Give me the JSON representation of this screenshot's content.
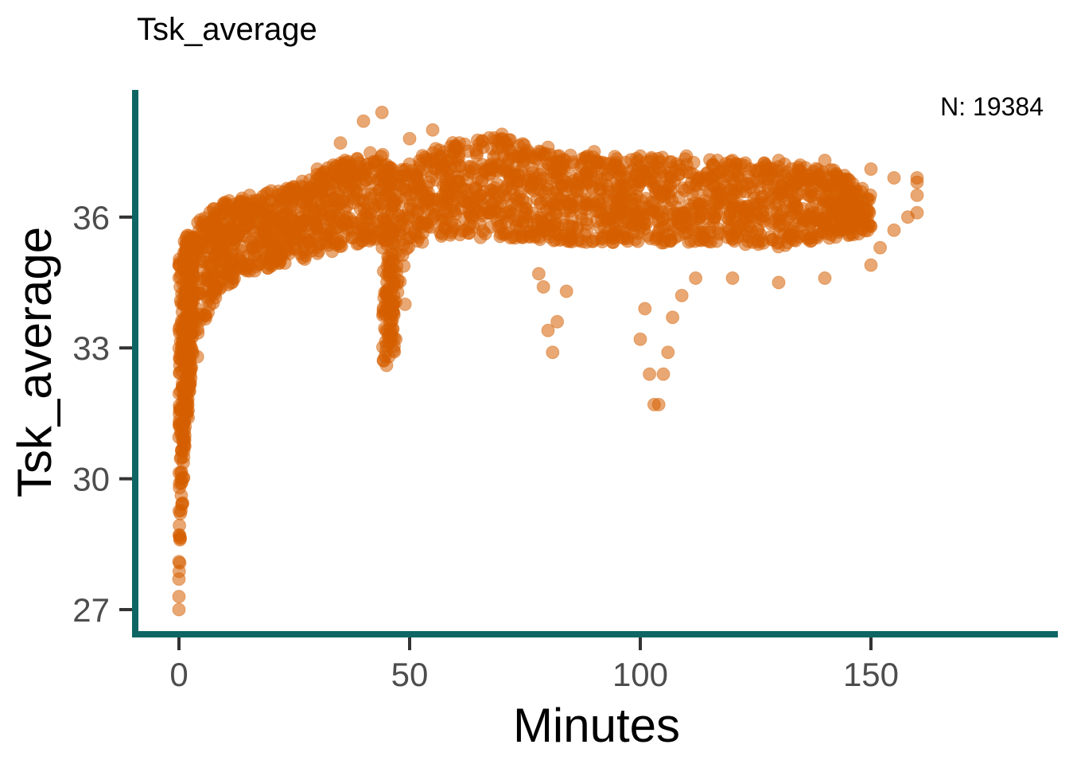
{
  "chart_data": {
    "type": "scatter",
    "title": "Tsk_average",
    "xlabel": "Minutes",
    "ylabel": "Tsk_average",
    "annotation": "N: 19384",
    "xlim": [
      -9.5,
      190
    ],
    "ylim": [
      26.5,
      39
    ],
    "x_ticks": [
      0,
      50,
      100,
      150
    ],
    "y_ticks": [
      27,
      30,
      33,
      36
    ],
    "grid": false,
    "legend": "none",
    "colors": {
      "points": "#d55e00",
      "axis": "#0d6663",
      "tick_label": "#4d4d4d"
    },
    "point_count_shown": 19384,
    "sample_points": [
      {
        "x": 0,
        "y": 27.0
      },
      {
        "x": 0,
        "y": 27.3
      },
      {
        "x": 0,
        "y": 27.7
      },
      {
        "x": 0,
        "y": 28.1
      },
      {
        "x": 0.2,
        "y": 28.6
      },
      {
        "x": 0.3,
        "y": 29.2
      },
      {
        "x": 0.5,
        "y": 30.0
      },
      {
        "x": 1,
        "y": 30.5
      },
      {
        "x": 2,
        "y": 31.4
      },
      {
        "x": 4,
        "y": 32.8
      },
      {
        "x": 0,
        "y": 34.9
      },
      {
        "x": 2,
        "y": 35.3
      },
      {
        "x": 5,
        "y": 35.8
      },
      {
        "x": 10,
        "y": 36.3
      },
      {
        "x": 20,
        "y": 36.6
      },
      {
        "x": 30,
        "y": 37.1
      },
      {
        "x": 35,
        "y": 37.7
      },
      {
        "x": 40,
        "y": 38.2
      },
      {
        "x": 44,
        "y": 38.4
      },
      {
        "x": 45,
        "y": 32.6
      },
      {
        "x": 45.5,
        "y": 32.8
      },
      {
        "x": 46,
        "y": 33.6
      },
      {
        "x": 47,
        "y": 33.2
      },
      {
        "x": 49,
        "y": 34.0
      },
      {
        "x": 50,
        "y": 37.8
      },
      {
        "x": 55,
        "y": 38.0
      },
      {
        "x": 60,
        "y": 37.5
      },
      {
        "x": 70,
        "y": 37.9
      },
      {
        "x": 80,
        "y": 37.6
      },
      {
        "x": 90,
        "y": 37.5
      },
      {
        "x": 100,
        "y": 37.4
      },
      {
        "x": 110,
        "y": 37.4
      },
      {
        "x": 120,
        "y": 37.3
      },
      {
        "x": 130,
        "y": 37.3
      },
      {
        "x": 140,
        "y": 37.3
      },
      {
        "x": 150,
        "y": 37.1
      },
      {
        "x": 155,
        "y": 36.9
      },
      {
        "x": 160,
        "y": 36.8
      },
      {
        "x": 78,
        "y": 34.7
      },
      {
        "x": 79,
        "y": 34.4
      },
      {
        "x": 80,
        "y": 33.4
      },
      {
        "x": 81,
        "y": 32.9
      },
      {
        "x": 82,
        "y": 33.6
      },
      {
        "x": 84,
        "y": 34.3
      },
      {
        "x": 100,
        "y": 33.2
      },
      {
        "x": 101,
        "y": 33.9
      },
      {
        "x": 102,
        "y": 32.4
      },
      {
        "x": 103,
        "y": 31.7
      },
      {
        "x": 104,
        "y": 31.7
      },
      {
        "x": 105,
        "y": 32.4
      },
      {
        "x": 106,
        "y": 32.9
      },
      {
        "x": 107,
        "y": 33.7
      },
      {
        "x": 109,
        "y": 34.2
      },
      {
        "x": 112,
        "y": 34.6
      },
      {
        "x": 120,
        "y": 34.6
      },
      {
        "x": 130,
        "y": 34.5
      },
      {
        "x": 140,
        "y": 34.6
      },
      {
        "x": 150,
        "y": 34.9
      },
      {
        "x": 152,
        "y": 35.3
      },
      {
        "x": 155,
        "y": 35.7
      },
      {
        "x": 158,
        "y": 36.0
      },
      {
        "x": 160,
        "y": 36.1
      },
      {
        "x": 160,
        "y": 36.5
      },
      {
        "x": 160,
        "y": 36.9
      }
    ]
  }
}
